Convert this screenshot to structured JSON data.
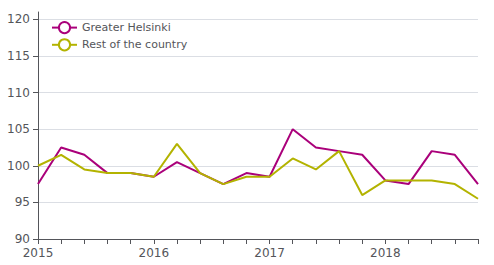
{
  "chart_data": {
    "type": "line",
    "categories": [
      "2015",
      null,
      null,
      null,
      null,
      "2016",
      null,
      null,
      null,
      null,
      "2017",
      null,
      null,
      null,
      null,
      "2018",
      null,
      null,
      null,
      null
    ],
    "series": [
      {
        "name": "Greater Helsinki",
        "color": "#aa007a",
        "values": [
          97.5,
          102.5,
          101.5,
          99.0,
          99.0,
          98.5,
          100.5,
          99.0,
          97.5,
          99.0,
          98.5,
          105.0,
          102.5,
          102.0,
          101.5,
          98.0,
          97.5,
          102.0,
          101.5,
          97.5
        ]
      },
      {
        "name": "Rest of the country",
        "color": "#b3b300",
        "values": [
          100.0,
          101.5,
          99.5,
          99.0,
          99.0,
          98.5,
          103.0,
          99.0,
          97.5,
          98.5,
          98.5,
          101.0,
          99.5,
          102.0,
          96.0,
          98.0,
          98.0,
          98.0,
          97.5,
          95.5
        ]
      }
    ],
    "ylim": [
      90,
      121
    ],
    "yticks": [
      90,
      95,
      100,
      105,
      110,
      115,
      120
    ],
    "grid": true,
    "legend": "upper left"
  }
}
